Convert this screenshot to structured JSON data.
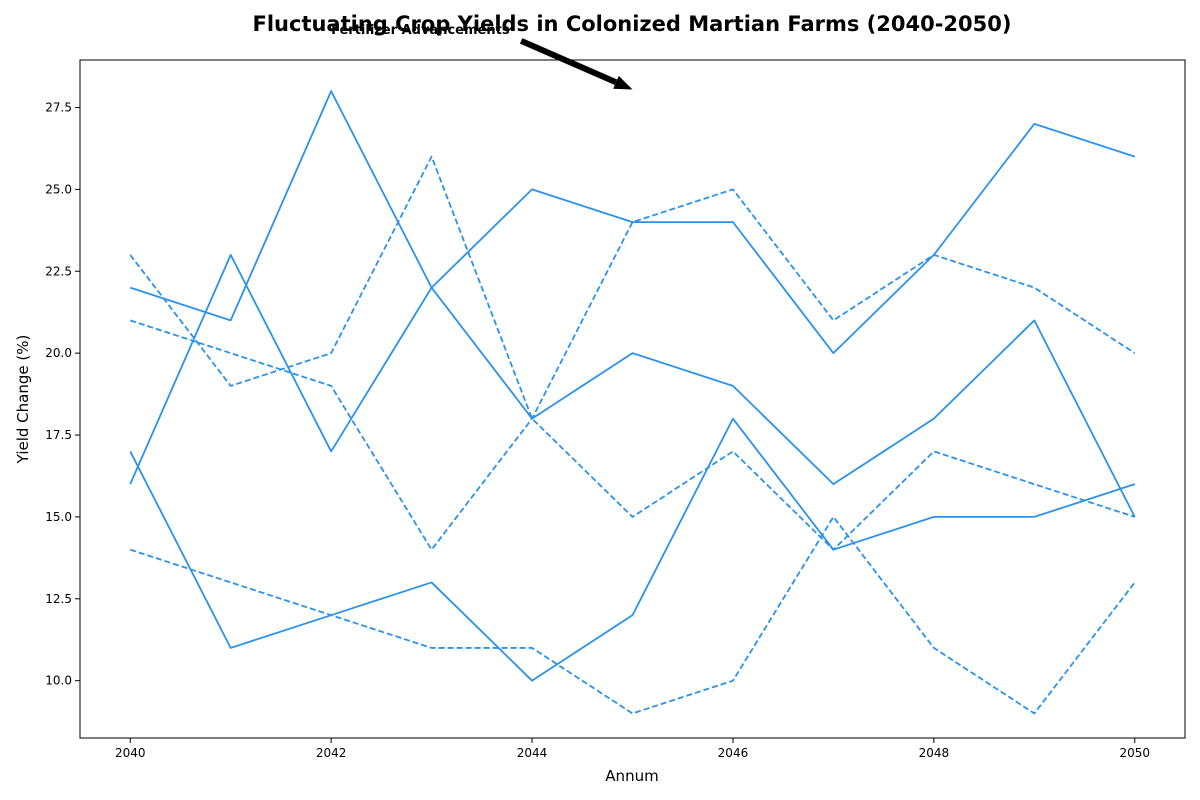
{
  "chart_data": {
    "type": "line",
    "title": "Fluctuating Crop Yields in Colonized Martian Farms (2040-2050)",
    "xlabel": "Annum",
    "ylabel": "Yield Change (%)",
    "xlim": [
      2039.5,
      2050.5
    ],
    "ylim": [
      8.25,
      28.95
    ],
    "xticks": [
      "2040",
      "2042",
      "2044",
      "2046",
      "2048",
      "2050"
    ],
    "yticks": [
      "10.0",
      "12.5",
      "15.0",
      "17.5",
      "20.0",
      "22.5",
      "25.0",
      "27.5"
    ],
    "grid": false,
    "line_color": "#2b92eb",
    "x": [
      2040,
      2041,
      2042,
      2043,
      2044,
      2045,
      2046,
      2047,
      2048,
      2049,
      2050
    ],
    "series": [
      {
        "style": "solid",
        "values": [
          22,
          21,
          28,
          22,
          18,
          20,
          19,
          16,
          18,
          21,
          15
        ]
      },
      {
        "style": "dashed",
        "values": [
          23,
          19,
          20,
          26,
          18,
          15,
          17,
          14,
          17,
          16,
          15
        ]
      },
      {
        "style": "solid",
        "values": [
          16,
          23,
          17,
          22,
          25,
          24,
          24,
          20,
          23,
          27,
          26
        ]
      },
      {
        "style": "dashed",
        "values": [
          21,
          20,
          19,
          14,
          18,
          24,
          25,
          21,
          23,
          22,
          20
        ]
      },
      {
        "style": "solid",
        "values": [
          17,
          11,
          12,
          13,
          10,
          12,
          18,
          14,
          15,
          15,
          16
        ]
      },
      {
        "style": "dashed",
        "values": [
          14,
          13,
          12,
          11,
          11,
          9,
          10,
          15,
          11,
          9,
          13
        ]
      }
    ],
    "annotation": {
      "text": "Fertilizer Advancements",
      "text_x": 2042,
      "text_y": 29.9,
      "target_x": 2045,
      "target_y": 28.05
    }
  }
}
